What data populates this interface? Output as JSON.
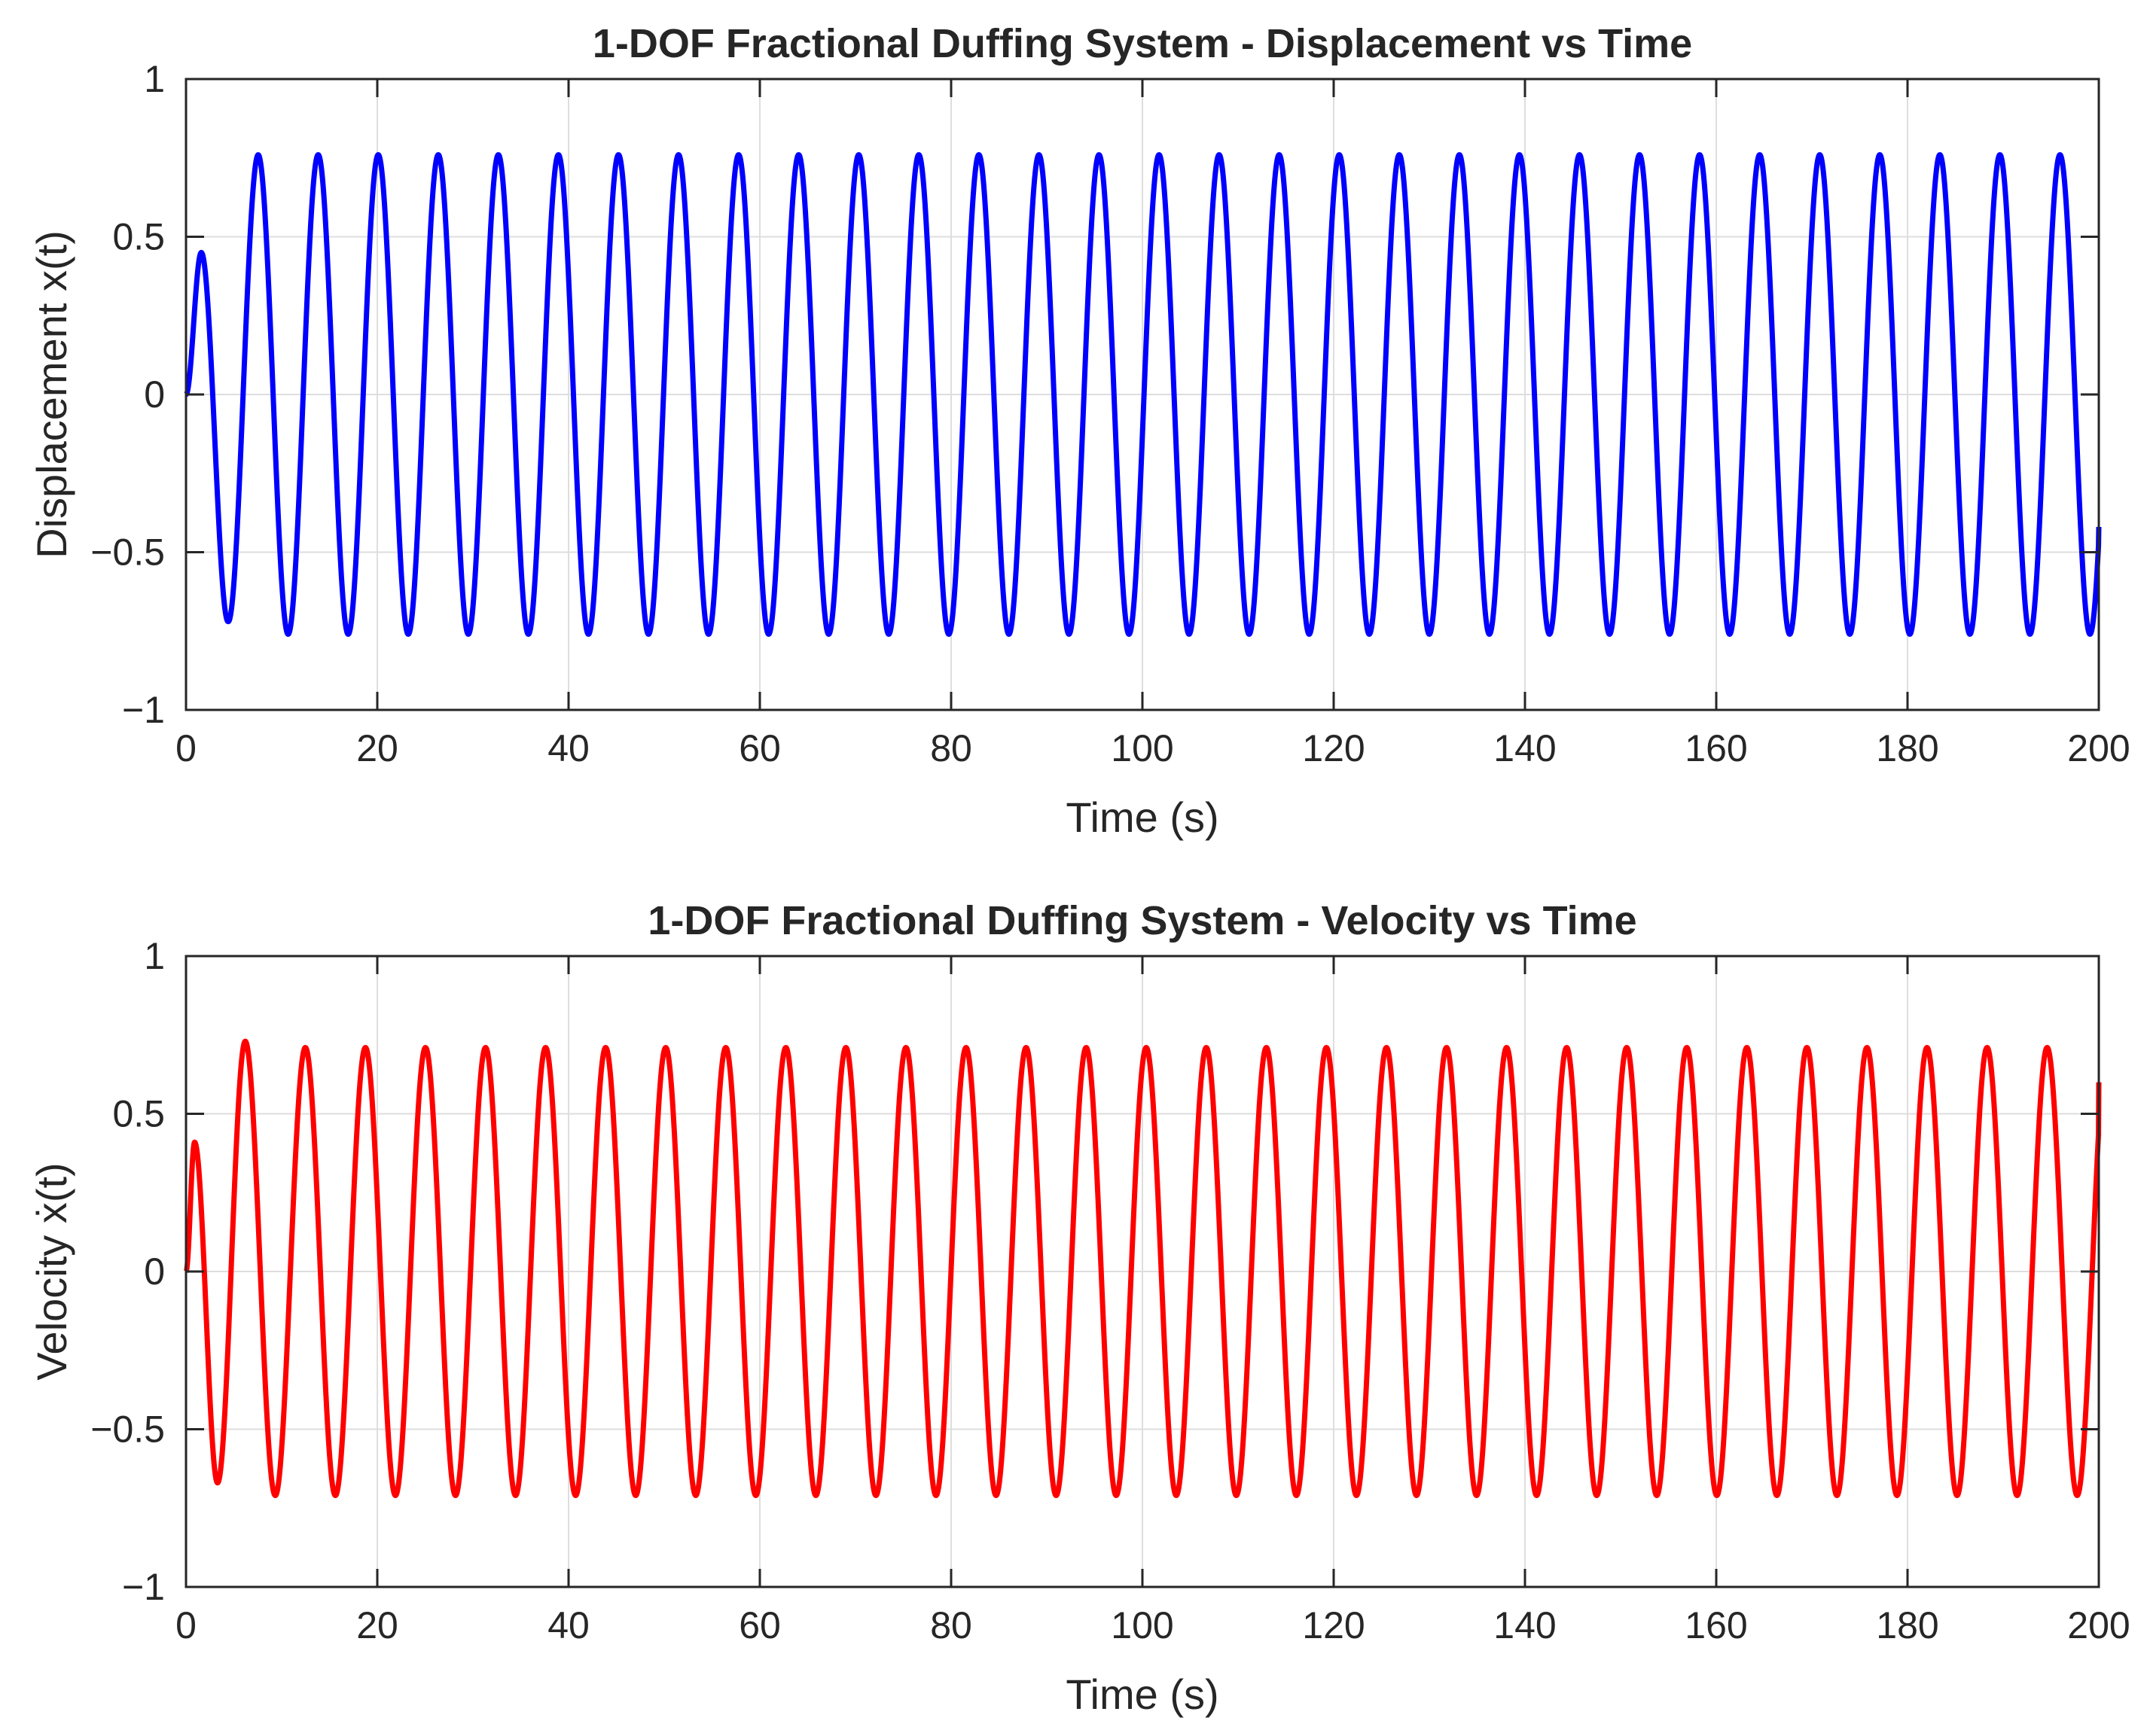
{
  "chart_data": [
    {
      "type": "line",
      "title": "1-DOF Fractional Duffing System - Displacement vs Time",
      "xlabel": "Time (s)",
      "ylabel": "Displacement x(t)",
      "xlim": [
        0,
        200
      ],
      "ylim": [
        -1,
        1
      ],
      "xticks": [
        0,
        20,
        40,
        60,
        80,
        100,
        120,
        140,
        160,
        180,
        200
      ],
      "yticks": [
        1,
        0.5,
        0,
        -0.5,
        -1
      ],
      "ytick_labels": [
        "1",
        "0.5",
        "0",
        "−0.5",
        "−1"
      ],
      "grid": true,
      "series": [
        {
          "name": "x(t)",
          "color": "#0000ff",
          "steady_amplitude": 0.76,
          "period": 6.28,
          "transient": {
            "first_peak": {
              "t": 1.6,
              "value": 0.45
            },
            "first_trough": {
              "t": 4.4,
              "value": -0.72
            }
          },
          "end_value": -0.42
        }
      ]
    },
    {
      "type": "line",
      "title": "1-DOF Fractional Duffing System - Velocity vs Time",
      "xlabel": "Time (s)",
      "ylabel": "Velocity ẋ(t)",
      "xlim": [
        0,
        200
      ],
      "ylim": [
        -1,
        1
      ],
      "xticks": [
        0,
        20,
        40,
        60,
        80,
        100,
        120,
        140,
        160,
        180,
        200
      ],
      "yticks": [
        1,
        0.5,
        0,
        -0.5,
        -1
      ],
      "ytick_labels": [
        "1",
        "0.5",
        "0",
        "−0.5",
        "−1"
      ],
      "grid": true,
      "series": [
        {
          "name": "ẋ(t)",
          "color": "#ff0000",
          "steady_amplitude": 0.71,
          "period": 6.28,
          "transient": {
            "first_peak": {
              "t": 0.9,
              "value": 0.41
            },
            "first_trough": {
              "t": 3.3,
              "value": -0.67
            },
            "second_peak": {
              "t": 6.2,
              "value": 0.73
            }
          },
          "end_value": 0.6
        }
      ]
    }
  ]
}
